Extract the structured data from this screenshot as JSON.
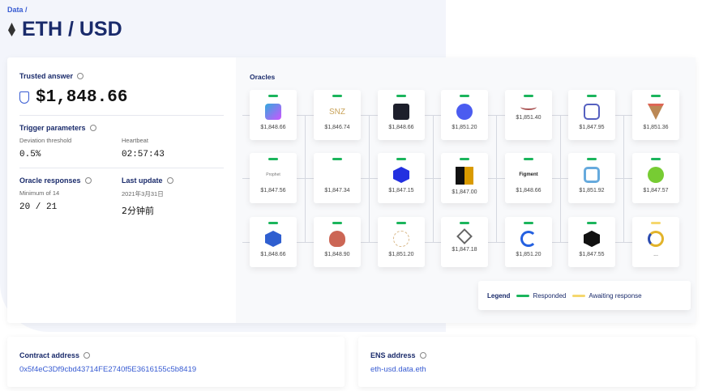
{
  "breadcrumb": "Data /",
  "title": "ETH / USD",
  "trusted": {
    "label": "Trusted answer",
    "value": "$1,848.66"
  },
  "trigger": {
    "label": "Trigger parameters",
    "deviation_label": "Deviation threshold",
    "deviation": "0.5%",
    "heartbeat_label": "Heartbeat",
    "heartbeat": "02:57:43"
  },
  "responses": {
    "label": "Oracle responses",
    "sub": "Minimum of 14",
    "value": "20 / 21"
  },
  "last_update": {
    "label": "Last update",
    "date": "2021年3月31日",
    "value": "2分钟前"
  },
  "oracles_label": "Oracles",
  "colors": {
    "responded": "#1bb55c",
    "awaiting": "#f5d76e",
    "accent": "#375bd2"
  },
  "oracles": [
    {
      "price": "$1,848.66",
      "icon": "cube-logo",
      "status": "responded"
    },
    {
      "price": "$1,846.74",
      "icon": "snz-logo",
      "text": "SNZ",
      "status": "responded"
    },
    {
      "price": "$1,848.66",
      "icon": "wallet-logo",
      "status": "responded"
    },
    {
      "price": "$1,851.20",
      "icon": "blue-blob-logo",
      "status": "responded"
    },
    {
      "price": "$1,851.40",
      "icon": "wave-logo",
      "status": "responded"
    },
    {
      "price": "$1,847.95",
      "icon": "hex-chain-logo",
      "status": "responded"
    },
    {
      "price": "$1,851.36",
      "icon": "v-logo",
      "status": "responded"
    },
    {
      "price": "$1,847.56",
      "icon": "prophet-logo",
      "text": "Prophet",
      "status": "responded"
    },
    {
      "price": "$1,847.34",
      "icon": "code-brackets-logo",
      "status": "responded"
    },
    {
      "price": "$1,847.15",
      "icon": "s-hexagon-logo",
      "status": "responded"
    },
    {
      "price": "$1,847.00",
      "icon": "squares-logo",
      "status": "responded"
    },
    {
      "price": "$1,848.66",
      "icon": "figment-logo",
      "text": "Figment",
      "status": "responded"
    },
    {
      "price": "$1,851.92",
      "icon": "s-gradient-logo",
      "status": "responded"
    },
    {
      "price": "$1,847.57",
      "icon": "fish-logo",
      "status": "responded"
    },
    {
      "price": "$1,848.66",
      "icon": "flame-hex-logo",
      "status": "responded"
    },
    {
      "price": "$1,848.90",
      "icon": "badge-logo",
      "status": "responded"
    },
    {
      "price": "$1,851.20",
      "icon": "network-logo",
      "status": "responded"
    },
    {
      "price": "$1,847.18",
      "icon": "diamonds-logo",
      "status": "responded"
    },
    {
      "price": "$1,851.20",
      "icon": "c-circle-logo",
      "status": "responded"
    },
    {
      "price": "$1,847.55",
      "icon": "hex-outline-logo",
      "status": "responded"
    },
    {
      "price": "...",
      "icon": "chain-link-logo",
      "status": "awaiting"
    }
  ],
  "legend": {
    "title": "Legend",
    "responded": "Responded",
    "awaiting": "Awaiting response"
  },
  "contract": {
    "label": "Contract address",
    "value": "0x5f4eC3Df9cbd43714FE2740f5E3616155c5b8419"
  },
  "ens": {
    "label": "ENS address",
    "value": "eth-usd.data.eth"
  }
}
